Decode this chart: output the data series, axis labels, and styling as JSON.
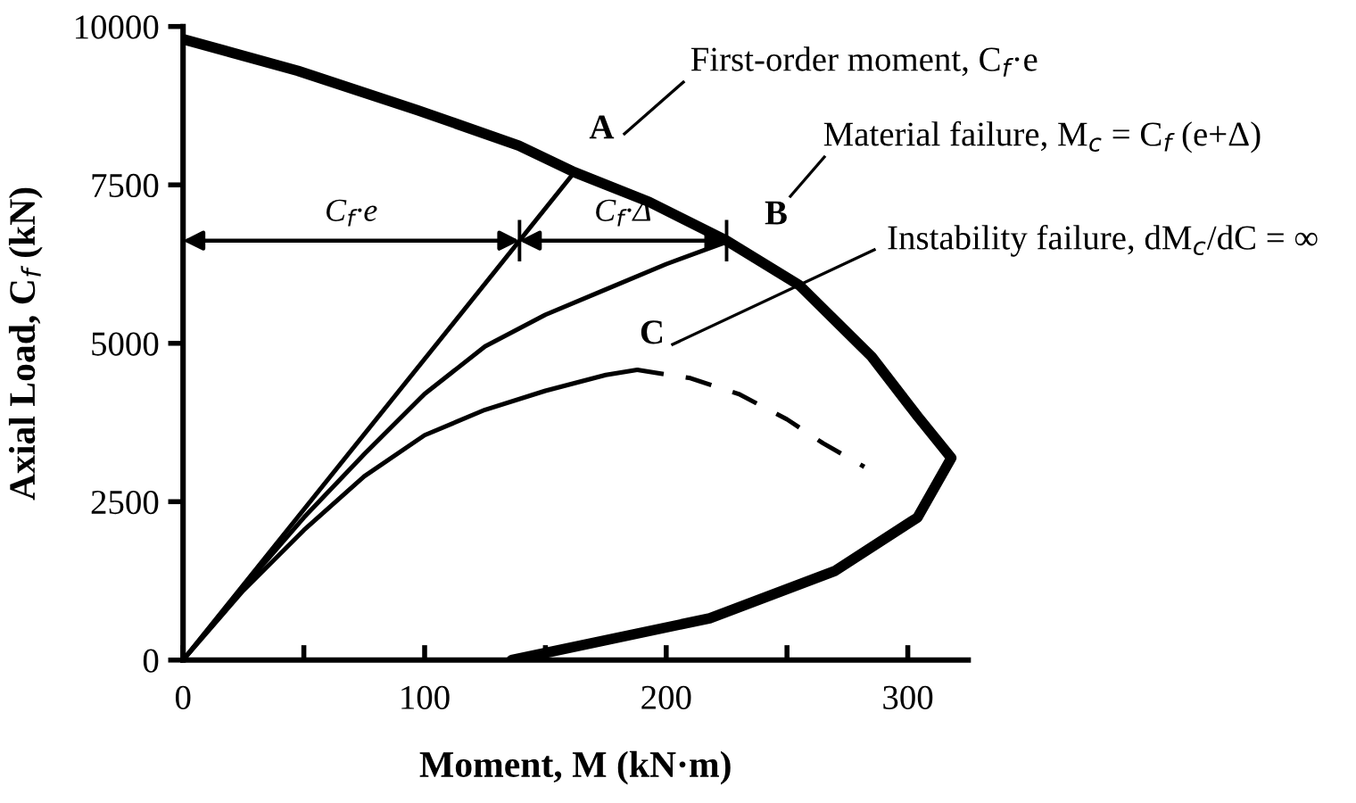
{
  "chart_data": {
    "type": "line",
    "xlabel": "Moment, M (kN·m)",
    "ylabel": "Axial Load, C$_{f}$ (kN)",
    "xlim": [
      0,
      325
    ],
    "ylim": [
      0,
      10000
    ],
    "xticks": [
      0,
      {
        "value": 50,
        "label": null
      },
      100,
      {
        "value": 150,
        "label": null
      },
      200,
      {
        "value": 250,
        "label": null
      },
      300
    ],
    "yticks": [
      0,
      2500,
      5000,
      7500,
      10000
    ],
    "grid": false,
    "legend": false,
    "series": [
      {
        "color": "#000000",
        "x": [
          0,
          47.5,
          97,
          139,
          162,
          193,
          225,
          255,
          285,
          304,
          318,
          304,
          270,
          218,
          136
        ],
        "values": [
          9800,
          9300,
          8680,
          8120,
          7700,
          7230,
          6620,
          5920,
          4790,
          3850,
          3190,
          2250,
          1410,
          660,
          0
        ]
      },
      {
        "color": "#000000",
        "x": [
          0,
          162
        ],
        "values": [
          0,
          7700
        ]
      },
      {
        "color": "#000000",
        "x": [
          0,
          25,
          50,
          75,
          100,
          125,
          150,
          175,
          200,
          225
        ],
        "values": [
          0,
          1150,
          2250,
          3250,
          4200,
          4950,
          5450,
          5850,
          6250,
          6600
        ]
      },
      {
        "color": "#000000",
        "x": [
          0,
          25,
          50,
          75,
          100,
          125,
          150,
          175,
          188
        ],
        "values": [
          0,
          1100,
          2050,
          2900,
          3550,
          3950,
          4250,
          4500,
          4580
        ]
      },
      {
        "color": "#000000",
        "line_style": "dashed",
        "x": [
          188,
          210,
          230,
          250,
          265,
          282
        ],
        "values": [
          4580,
          4450,
          4200,
          3800,
          3420,
          3050
        ]
      }
    ],
    "annotations": [
      "First-order moment, C$_{f}$·e",
      "Material failure, M$_{c}$ = C$_{f}$ (e+Δ)",
      "Instability failure, dM$_{c}$/dC = ∞",
      {
        "text": "A",
        "x": 162,
        "y": 7700
      },
      {
        "text": "B",
        "x": 225,
        "y": 6620
      },
      {
        "text": "C",
        "x": 188,
        "y": 4580
      },
      "C$_{f}$·e",
      "C$_{f}$·Δ"
    ]
  }
}
